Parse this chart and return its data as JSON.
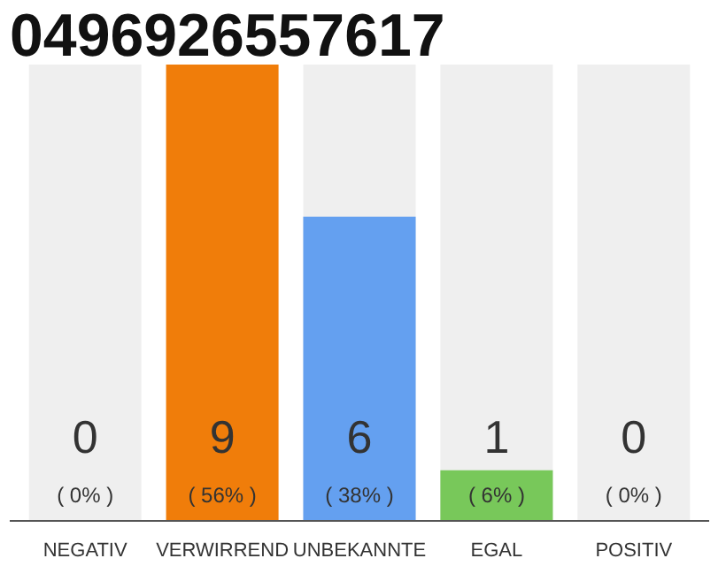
{
  "chart_data": {
    "type": "bar",
    "title": "0496926557617",
    "categories": [
      "NEGATIV",
      "VERWIRREND",
      "UNBEKANNTE",
      "EGAL",
      "POSITIV"
    ],
    "values": [
      0,
      9,
      6,
      1,
      0
    ],
    "colors": [
      "#f07d0a",
      "#f07d0a",
      "#64a0f0",
      "#78c85a",
      "#78c85a"
    ],
    "ylim": [
      0,
      9
    ],
    "data_labels": true,
    "annotations": [
      "( 0% )",
      "( 56% )",
      "( 38% )",
      "( 6% )",
      "( 0% )"
    ],
    "bands": [
      {
        "axis": "x",
        "from": "NEGATIV",
        "to": "NEGATIV",
        "color": "#efefef"
      },
      {
        "axis": "x",
        "from": "UNBEKANNTE",
        "to": "UNBEKANNTE",
        "color": "#efefef"
      },
      {
        "axis": "x",
        "from": "EGAL",
        "to": "EGAL",
        "color": "#efefef"
      },
      {
        "axis": "x",
        "from": "POSITIV",
        "to": "POSITIV",
        "color": "#efefef"
      }
    ],
    "tick_labels": "x",
    "grid": false
  }
}
